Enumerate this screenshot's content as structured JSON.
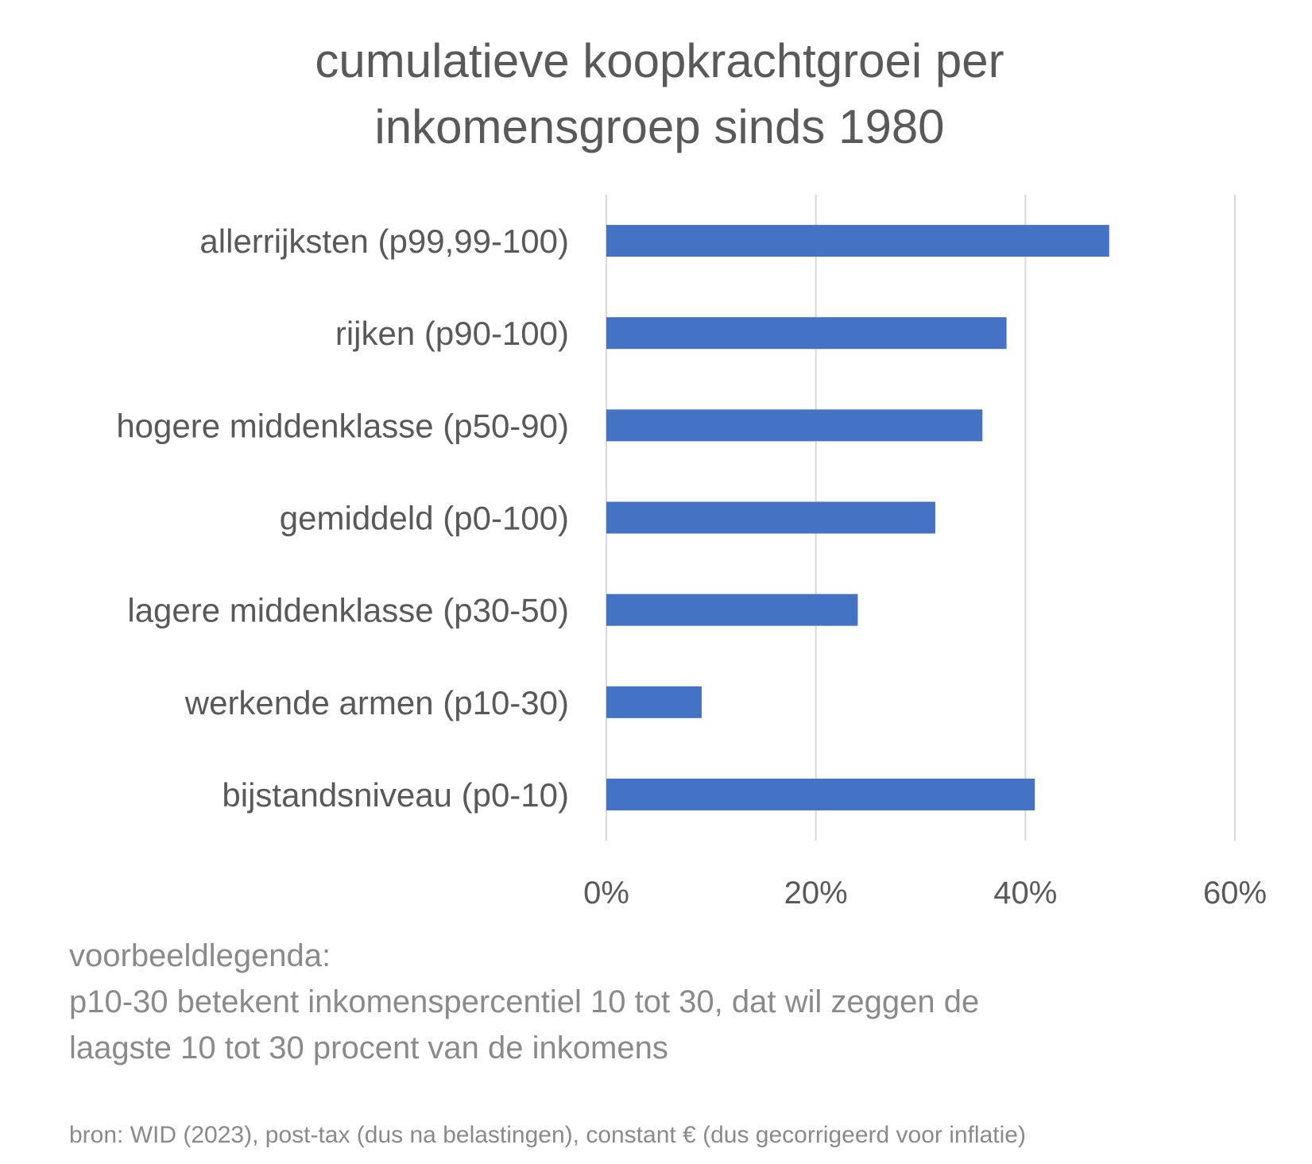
{
  "chart_data": {
    "type": "bar",
    "orientation": "horizontal",
    "title": [
      "cumulatieve koopkrachtgroei per",
      "inkomensgroep sinds 1980"
    ],
    "categories": [
      "allerrijksten (p99,99-100)",
      "rijken (p90-100)",
      "hogere middenklasse (p50-90)",
      "gemiddeld (p0-100)",
      "lagere middenklasse (p30-50)",
      "werkende armen (p10-30)",
      "bijstandsniveau (p0-10)"
    ],
    "values": [
      48.0,
      38.2,
      35.9,
      31.4,
      24.0,
      9.1,
      40.9
    ],
    "xlim": [
      0,
      60
    ],
    "xticks": [
      0,
      20,
      40,
      60
    ],
    "xtick_labels": [
      "0%",
      "20%",
      "40%",
      "60%"
    ],
    "grid": true,
    "bar_color": "#4472C4",
    "xlabel": "",
    "ylabel": ""
  },
  "note": {
    "lines": [
      "voorbeeldlegenda:",
      "p10-30 betekent inkomenspercentiel 10 tot 30, dat wil zeggen de",
      "laagste 10 tot 30 procent van de inkomens"
    ]
  },
  "source": "bron: WID (2023), post-tax (dus na belastingen), constant € (dus gecorrigeerd voor inflatie)"
}
